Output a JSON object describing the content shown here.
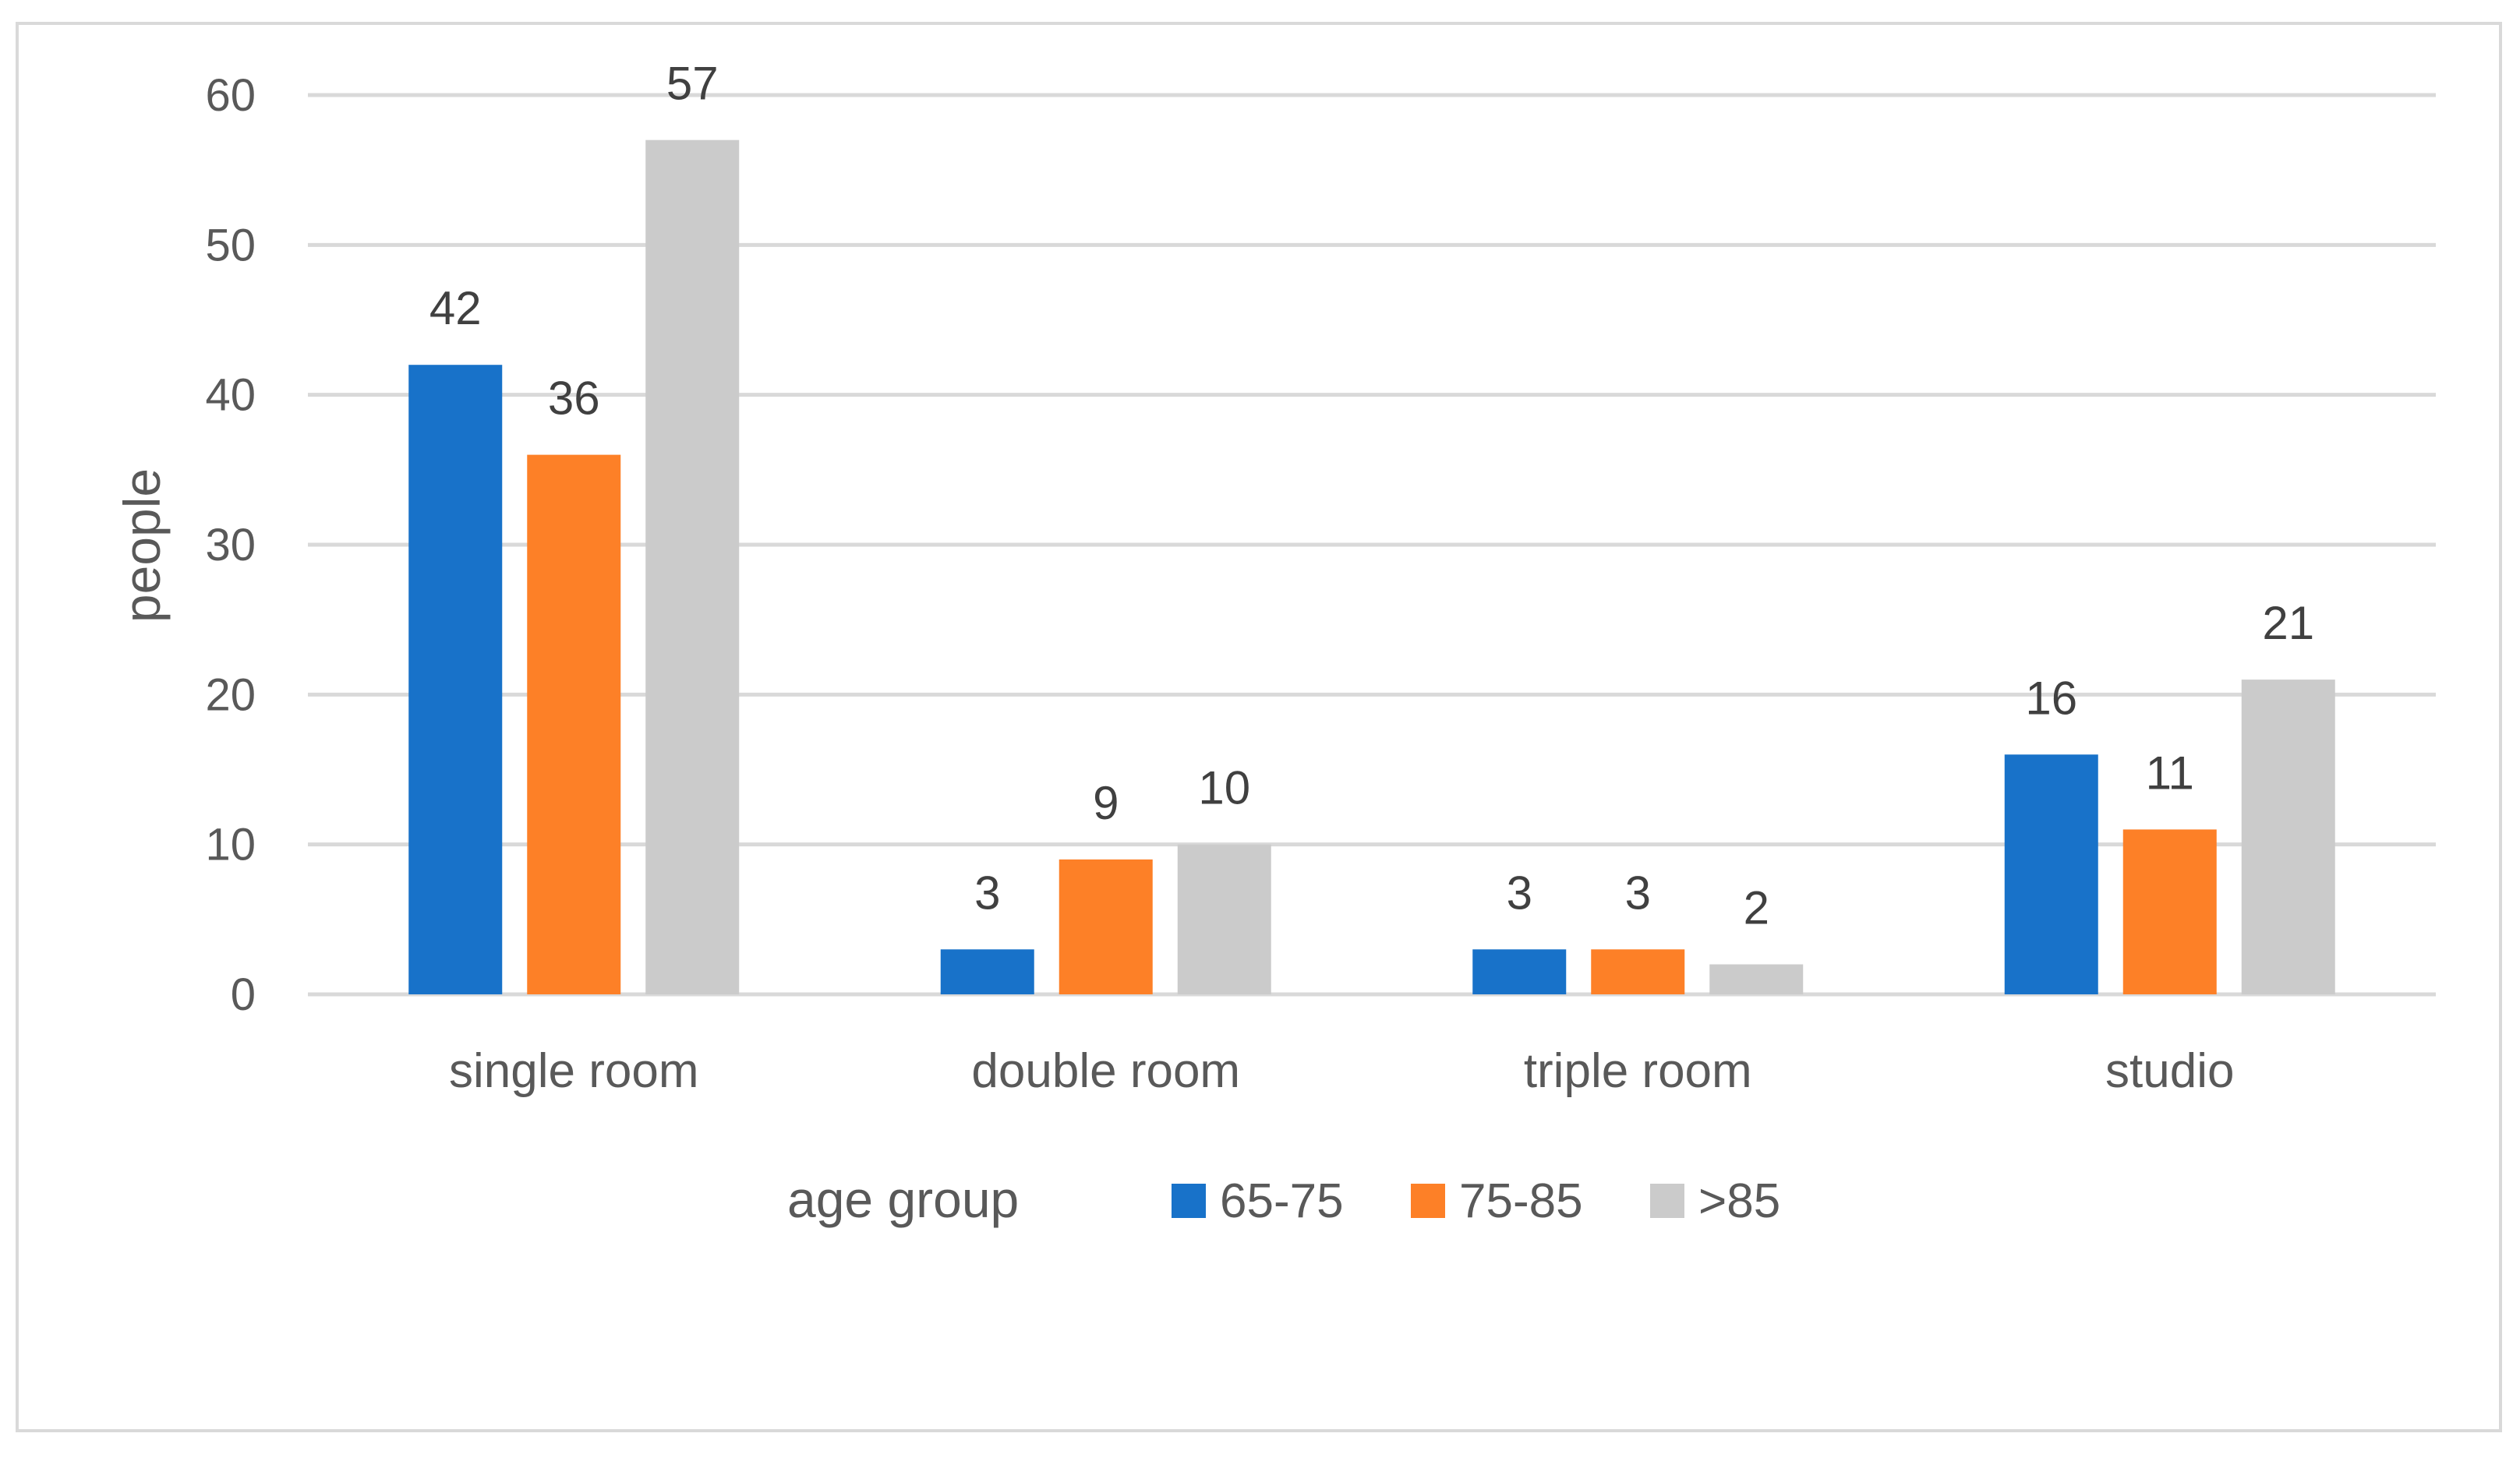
{
  "chart_data": {
    "type": "bar",
    "title": "",
    "xlabel": "",
    "ylabel": "people",
    "ylim": [
      0,
      60
    ],
    "yticks": [
      0,
      10,
      20,
      30,
      40,
      50,
      60
    ],
    "grid": true,
    "legend": {
      "title": "age group",
      "placement": "bottom"
    },
    "categories": [
      "single room",
      "double room",
      "triple room",
      "studio"
    ],
    "series": [
      {
        "name": "65-75",
        "color": "#1872c9",
        "values": [
          42,
          3,
          3,
          16
        ]
      },
      {
        "name": "75-85",
        "color": "#fd8027",
        "values": [
          36,
          9,
          3,
          11
        ]
      },
      {
        "name": ">85",
        "color": "#cbcbcb",
        "values": [
          57,
          10,
          2,
          21
        ]
      }
    ],
    "data_labels": true
  }
}
